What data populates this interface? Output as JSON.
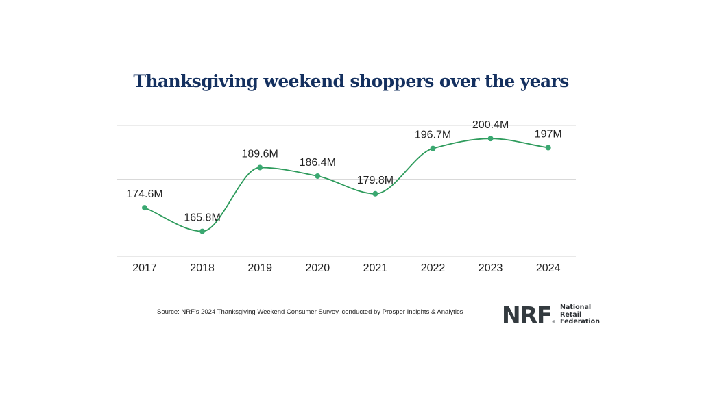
{
  "title": "Thanksgiving weekend shoppers over the years",
  "source": "Source: NRF's 2024 Thanksgiving Weekend Consumer Survey, conducted by Prosper Insights & Analytics",
  "logo": {
    "mark": "NRF",
    "registered": "®",
    "line1": "National",
    "line2": "Retail",
    "line3": "Federation"
  },
  "colors": {
    "line": "#2e9b5c",
    "point": "#3aa871",
    "grid": "#d9d9d9",
    "title": "#14305f",
    "label": "#222222"
  },
  "chart_data": {
    "type": "line",
    "categories": [
      "2017",
      "2018",
      "2019",
      "2020",
      "2021",
      "2022",
      "2023",
      "2024"
    ],
    "values": [
      174.6,
      165.8,
      189.6,
      186.4,
      179.8,
      196.7,
      200.4,
      197
    ],
    "data_labels": [
      "174.6M",
      "165.8M",
      "189.6M",
      "186.4M",
      "179.8M",
      "196.7M",
      "200.4M",
      "197M"
    ],
    "title": "Thanksgiving weekend shoppers over the years",
    "xlabel": "",
    "ylabel": "",
    "ylim": [
      156.5,
      205.3
    ],
    "grid": true,
    "smooth": true,
    "legend": "none"
  }
}
